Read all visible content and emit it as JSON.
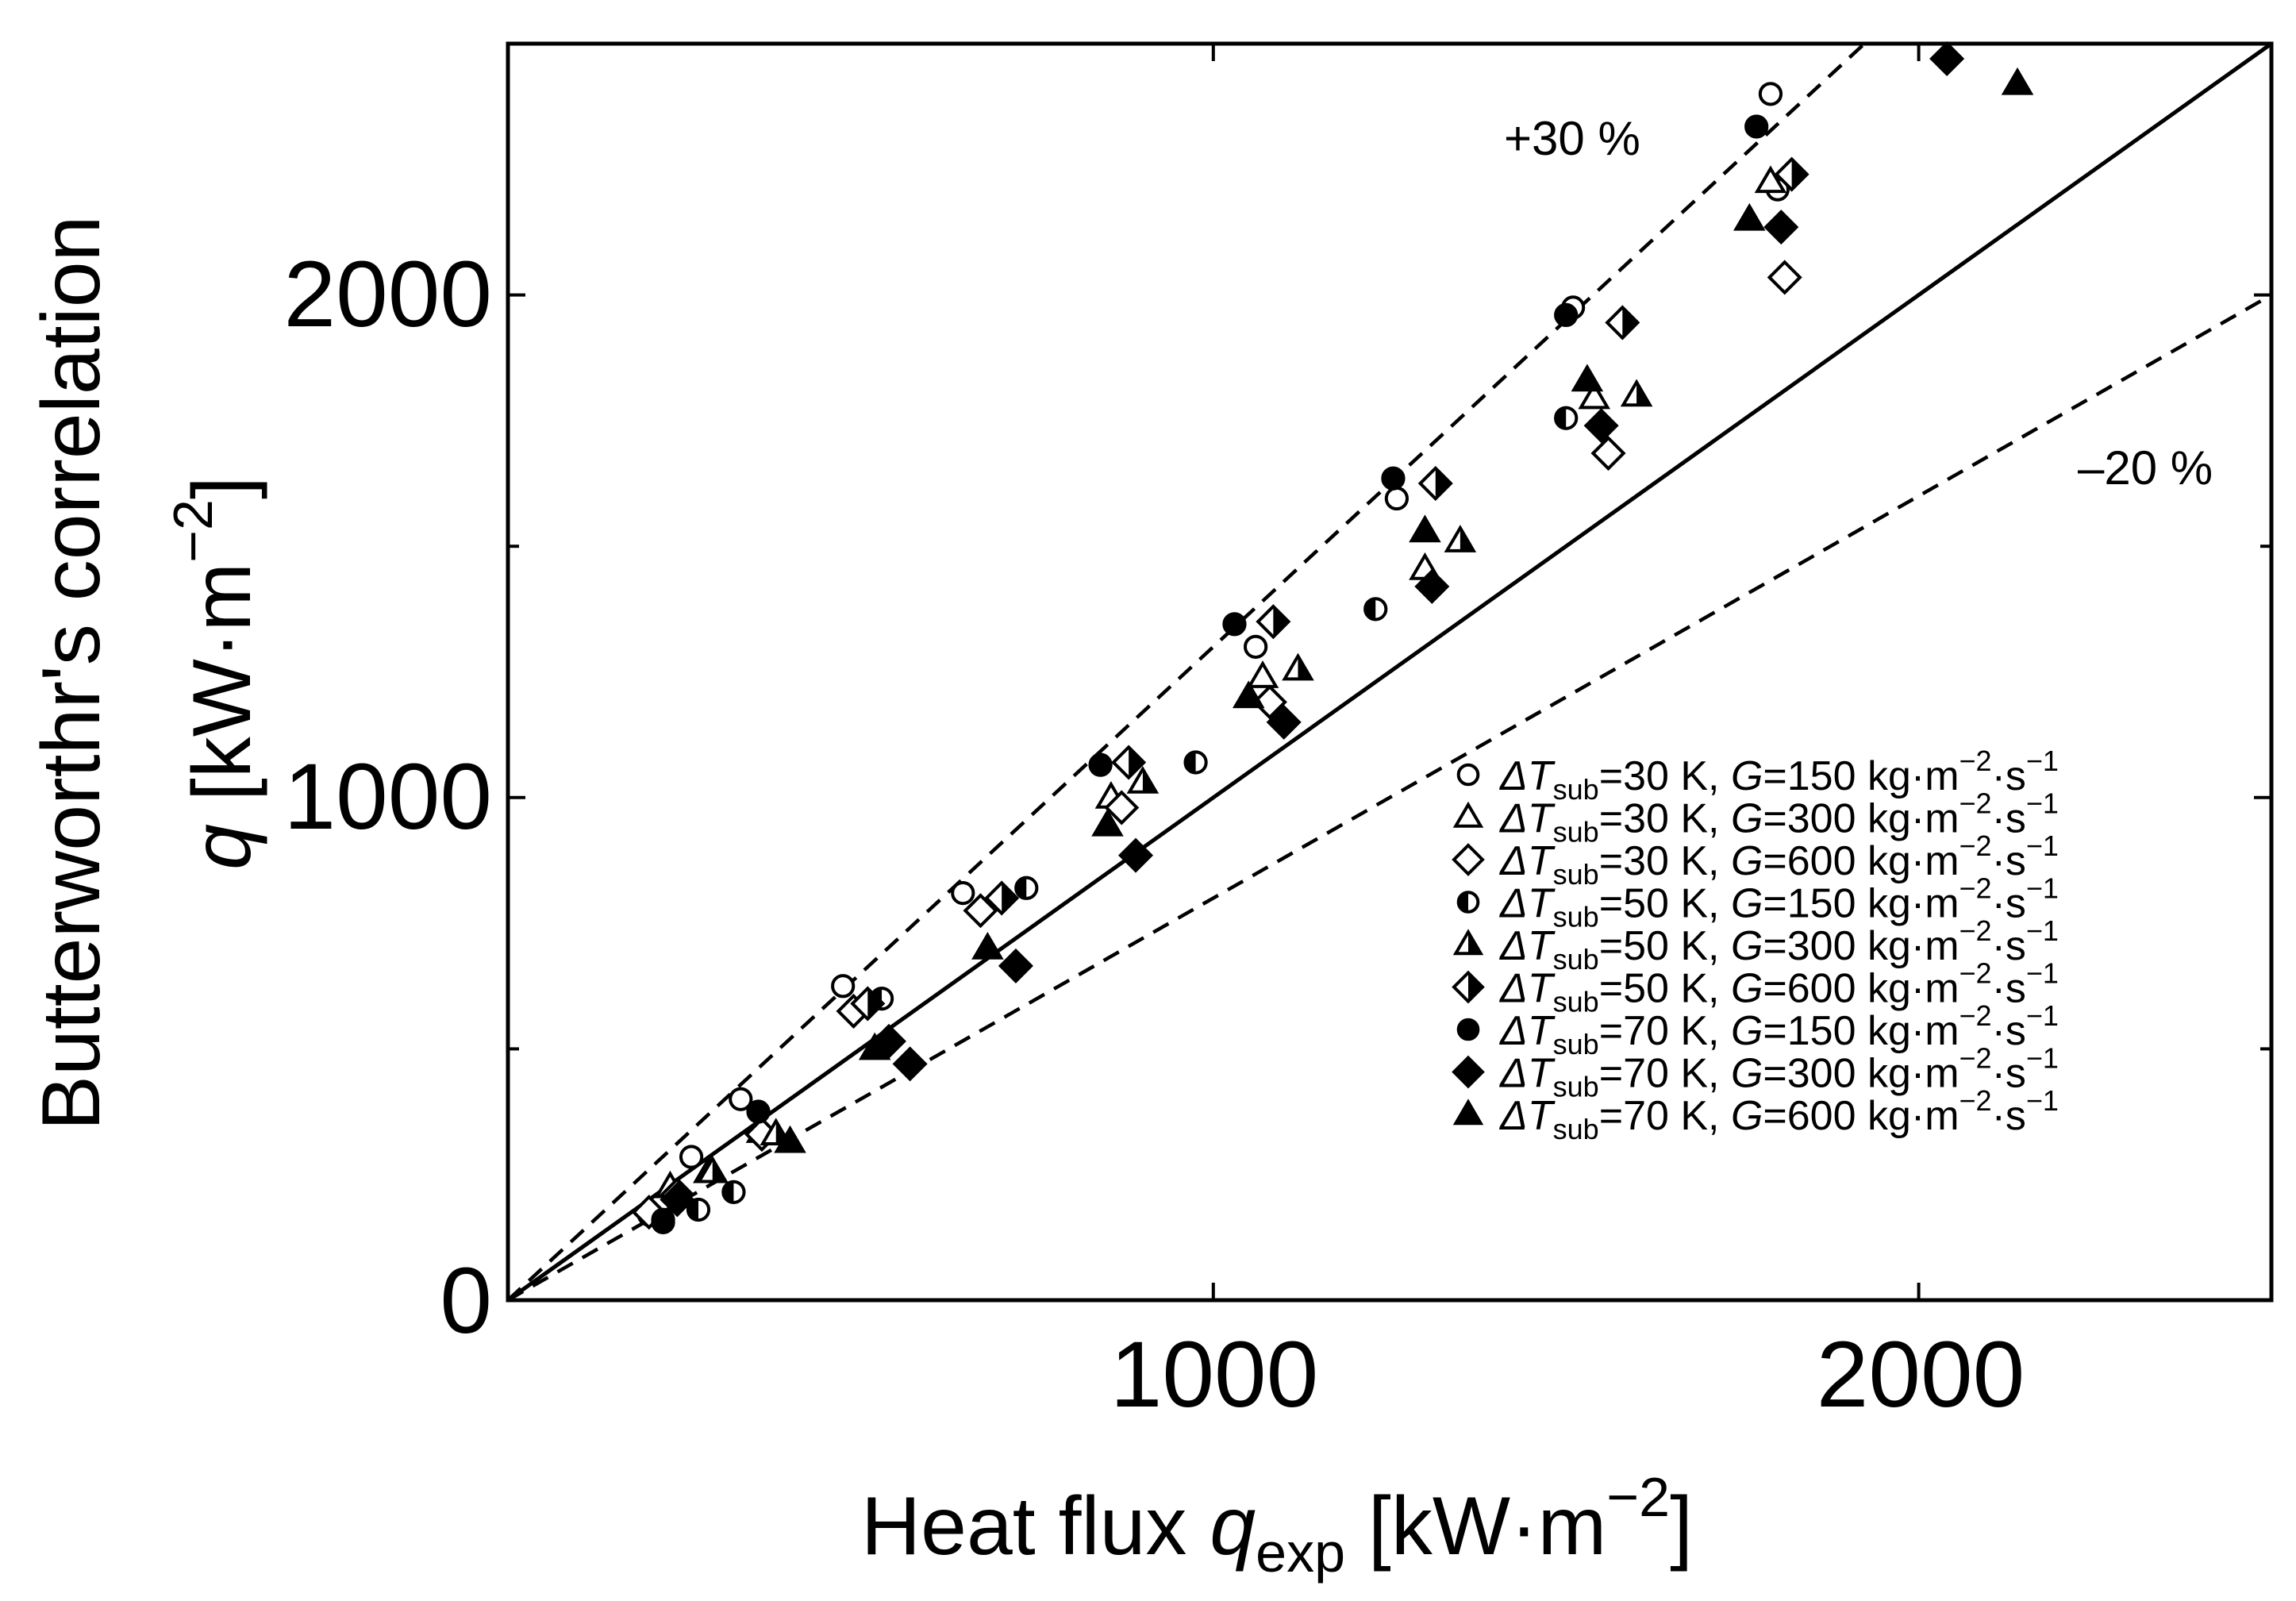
{
  "chart_data": {
    "type": "scatter",
    "title": "",
    "xlabel": {
      "main": "Heat flux ",
      "var": "q",
      "sub": "exp",
      "unit_open": " [kW·m",
      "unit_exp": "−2",
      "unit_close": "]"
    },
    "ylabel": {
      "line1": "Butterworthr's correlation",
      "var": "q",
      "unit_open": " [kW·m",
      "unit_exp": "−2",
      "unit_close": "]"
    },
    "xlim": [
      0,
      2500
    ],
    "ylim": [
      0,
      2500
    ],
    "x_ticks": [
      0,
      1000,
      2000
    ],
    "y_ticks": [
      0,
      1000,
      2000
    ],
    "x_tick_labels": [
      "1000",
      "2000"
    ],
    "y_tick_labels": [
      "0",
      "1000",
      "2000"
    ],
    "reference_lines": [
      {
        "name": "identity",
        "slope": 1.0,
        "style": "solid",
        "label": ""
      },
      {
        "name": "plus30",
        "slope": 1.3,
        "style": "dashed",
        "label": "+30 %"
      },
      {
        "name": "minus20",
        "slope": 0.8,
        "style": "dashed",
        "label": "–20 %"
      }
    ],
    "legend_position": "lower-right",
    "series": [
      {
        "dT": "30",
        "G": "150",
        "marker": "circle",
        "fill": "open",
        "points": [
          [
            200,
            170
          ],
          [
            260,
            285
          ],
          [
            330,
            400
          ],
          [
            475,
            625
          ],
          [
            645,
            810
          ],
          [
            1060,
            1300
          ],
          [
            1260,
            1595
          ],
          [
            1510,
            1975
          ],
          [
            1790,
            2400
          ],
          [
            1800,
            2210
          ]
        ]
      },
      {
        "dT": "30",
        "G": "300",
        "marker": "triangle",
        "fill": "open",
        "points": [
          [
            230,
            225
          ],
          [
            285,
            255
          ],
          [
            360,
            335
          ],
          [
            855,
            1000
          ],
          [
            1070,
            1240
          ],
          [
            1300,
            1455
          ],
          [
            1540,
            1795
          ],
          [
            1790,
            2225
          ]
        ]
      },
      {
        "dT": "30",
        "G": "600",
        "marker": "diamond",
        "fill": "open",
        "points": [
          [
            200,
            175
          ],
          [
            360,
            330
          ],
          [
            490,
            575
          ],
          [
            670,
            775
          ],
          [
            870,
            980
          ],
          [
            1080,
            1190
          ],
          [
            1560,
            1685
          ],
          [
            1810,
            2035
          ]
        ]
      },
      {
        "dT": "50",
        "G": "150",
        "marker": "circle",
        "fill": "half",
        "points": [
          [
            220,
            160
          ],
          [
            270,
            180
          ],
          [
            320,
            215
          ],
          [
            530,
            600
          ],
          [
            735,
            820
          ],
          [
            975,
            1070
          ],
          [
            1230,
            1375
          ],
          [
            1500,
            1755
          ]
        ]
      },
      {
        "dT": "50",
        "G": "300",
        "marker": "triangle",
        "fill": "half",
        "points": [
          [
            290,
            255
          ],
          [
            380,
            330
          ],
          [
            900,
            1030
          ],
          [
            1120,
            1255
          ],
          [
            1350,
            1510
          ],
          [
            1600,
            1800
          ]
        ]
      },
      {
        "dT": "50",
        "G": "600",
        "marker": "diamond",
        "fill": "half",
        "points": [
          [
            240,
            210
          ],
          [
            510,
            590
          ],
          [
            700,
            800
          ],
          [
            880,
            1070
          ],
          [
            1085,
            1350
          ],
          [
            1315,
            1625
          ],
          [
            1580,
            1945
          ],
          [
            1820,
            2240
          ]
        ]
      },
      {
        "dT": "70",
        "G": "150",
        "marker": "circle",
        "fill": "filled",
        "points": [
          [
            220,
            155
          ],
          [
            355,
            375
          ],
          [
            840,
            1065
          ],
          [
            1030,
            1345
          ],
          [
            1255,
            1635
          ],
          [
            1500,
            1960
          ],
          [
            1770,
            2335
          ]
        ]
      },
      {
        "dT": "70",
        "G": "300",
        "marker": "diamond",
        "fill": "filled",
        "points": [
          [
            240,
            200
          ],
          [
            540,
            515
          ],
          [
            570,
            470
          ],
          [
            720,
            665
          ],
          [
            890,
            885
          ],
          [
            1100,
            1150
          ],
          [
            1310,
            1420
          ],
          [
            1550,
            1740
          ],
          [
            1805,
            2135
          ],
          [
            2040,
            2470
          ]
        ]
      },
      {
        "dT": "70",
        "G": "600",
        "marker": "triangle",
        "fill": "filled",
        "points": [
          [
            400,
            315
          ],
          [
            520,
            500
          ],
          [
            680,
            700
          ],
          [
            850,
            945
          ],
          [
            1050,
            1200
          ],
          [
            1300,
            1530
          ],
          [
            1530,
            1830
          ],
          [
            1760,
            2150
          ],
          [
            2140,
            2420
          ]
        ]
      }
    ],
    "legend_labels": {
      "delta": "Δ",
      "T": "T",
      "sub": "sub",
      "eq": "=",
      "unit_K": " K, ",
      "G": "G",
      "unit_kg": " kg·m",
      "exp_m": "−2",
      "unit_s": "·s",
      "exp_s": "−1"
    }
  }
}
